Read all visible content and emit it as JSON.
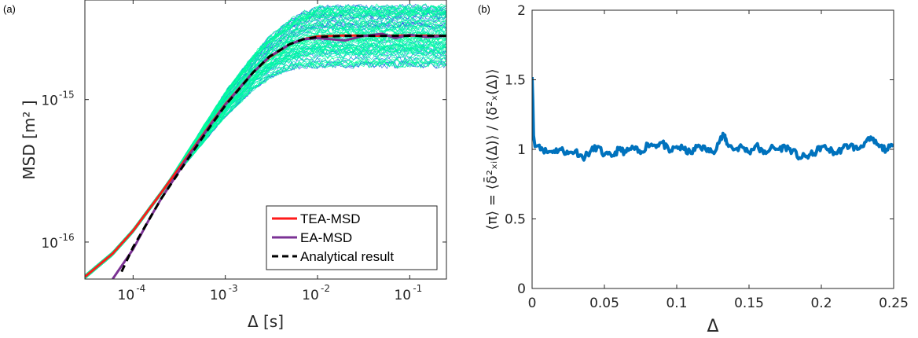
{
  "chart_data": [
    {
      "panel": "(a)",
      "type": "line",
      "scale": "log-log",
      "xlabel": "Δ [s]",
      "ylabel": "MSD [m² ]",
      "xlim": [
        3e-05,
        0.25
      ],
      "ylim": [
        5.5e-17,
        5e-15
      ],
      "xticks": [
        {
          "v": 0.0001,
          "label": "10",
          "exp": "-4"
        },
        {
          "v": 0.001,
          "label": "10",
          "exp": "-3"
        },
        {
          "v": 0.01,
          "label": "10",
          "exp": "-2"
        },
        {
          "v": 0.1,
          "label": "10",
          "exp": "-1"
        }
      ],
      "yticks": [
        {
          "v": 1e-16,
          "label": "10",
          "exp": "-16"
        },
        {
          "v": 1e-15,
          "label": "10",
          "exp": "-15"
        }
      ],
      "legend_position": "bottom-right",
      "background_band": {
        "description": "many single-trajectory TA-MSD curves",
        "colors": [
          "#00ff9c",
          "#00e5c0",
          "#1a6fe0"
        ]
      },
      "series": [
        {
          "name": "TEA-MSD",
          "color": "#ff1a1a",
          "style": "solid",
          "x": [
            3e-05,
            6e-05,
            0.0001,
            0.0002,
            0.0004,
            0.0007,
            0.001,
            0.002,
            0.003,
            0.005,
            0.007,
            0.01,
            0.02,
            0.05,
            0.1,
            0.25
          ],
          "y": [
            5.7e-17,
            8.3e-17,
            1.2e-16,
            2.2e-16,
            4.1e-16,
            6.8e-16,
            9.3e-16,
            1.55e-15,
            1.98e-15,
            2.45e-15,
            2.65e-15,
            2.78e-15,
            2.82e-15,
            2.8e-15,
            2.82e-15,
            2.8e-15
          ]
        },
        {
          "name": "EA-MSD",
          "color": "#7b3294",
          "style": "solid",
          "x": [
            6e-05,
            0.0001,
            0.00015,
            0.0002,
            0.0004,
            0.0007,
            0.001,
            0.002,
            0.003,
            0.005,
            0.007,
            0.01,
            0.02,
            0.03,
            0.05,
            0.07,
            0.1,
            0.15,
            0.25
          ],
          "y": [
            5.5e-17,
            8.9e-17,
            1.45e-16,
            2e-16,
            4e-16,
            6.7e-16,
            9.2e-16,
            1.55e-15,
            2e-15,
            2.45e-15,
            2.65e-15,
            2.7e-15,
            2.6e-15,
            2.78e-15,
            2.9e-15,
            2.7e-15,
            2.85e-15,
            2.75e-15,
            2.8e-15
          ]
        },
        {
          "name": "Analytical result",
          "color": "#000000",
          "style": "dashed",
          "x": [
            7.5e-05,
            0.0001,
            0.0002,
            0.0004,
            0.0007,
            0.001,
            0.002,
            0.003,
            0.005,
            0.007,
            0.01,
            0.02,
            0.05,
            0.1,
            0.25
          ],
          "y": [
            6.2e-17,
            9.2e-17,
            2e-16,
            3.9e-16,
            6.6e-16,
            9.1e-16,
            1.55e-15,
            2e-15,
            2.45e-15,
            2.65e-15,
            2.75e-15,
            2.8e-15,
            2.8e-15,
            2.8e-15,
            2.8e-15
          ]
        }
      ]
    },
    {
      "panel": "(b)",
      "type": "line",
      "xlabel": "Δ",
      "ylabel": "⟨π⟩ = ⟨δ̄²ₓᵢ(Δ)⟩ / ⟨δ²ₓ(Δ)⟩",
      "xlim": [
        0,
        0.25
      ],
      "ylim": [
        0,
        2
      ],
      "xticks": [
        0,
        0.05,
        0.1,
        0.15,
        0.2,
        0.25
      ],
      "yticks": [
        0,
        0.5,
        1,
        1.5,
        2
      ],
      "series": [
        {
          "color": "#0072bd",
          "x": [
            0,
            0.0005,
            0.001,
            0.002,
            0.005,
            0.01,
            0.015,
            0.02,
            0.025,
            0.03,
            0.035,
            0.04,
            0.045,
            0.05,
            0.055,
            0.06,
            0.065,
            0.07,
            0.075,
            0.08,
            0.085,
            0.09,
            0.095,
            0.1,
            0.105,
            0.11,
            0.115,
            0.12,
            0.125,
            0.13,
            0.133,
            0.135,
            0.14,
            0.145,
            0.15,
            0.155,
            0.16,
            0.165,
            0.17,
            0.175,
            0.18,
            0.185,
            0.19,
            0.195,
            0.2,
            0.205,
            0.21,
            0.215,
            0.22,
            0.225,
            0.23,
            0.235,
            0.24,
            0.245,
            0.25
          ],
          "y": [
            1.52,
            1.35,
            1.1,
            1.02,
            1.03,
            0.98,
            0.99,
            1.0,
            0.97,
            0.99,
            0.94,
            0.98,
            1.02,
            0.96,
            0.95,
            1.0,
            0.98,
            1.01,
            0.97,
            1.04,
            1.03,
            1.05,
            0.98,
            1.02,
            1.0,
            0.97,
            1.03,
            1.0,
            0.98,
            1.07,
            1.1,
            1.04,
            1.0,
            1.02,
            0.98,
            1.03,
            0.97,
            1.01,
            1.0,
            1.02,
            0.99,
            0.94,
            0.95,
            0.97,
            1.02,
            1.0,
            0.97,
            1.01,
            1.03,
            1.0,
            1.05,
            1.07,
            1.02,
            1.0,
            1.02
          ]
        }
      ]
    }
  ]
}
